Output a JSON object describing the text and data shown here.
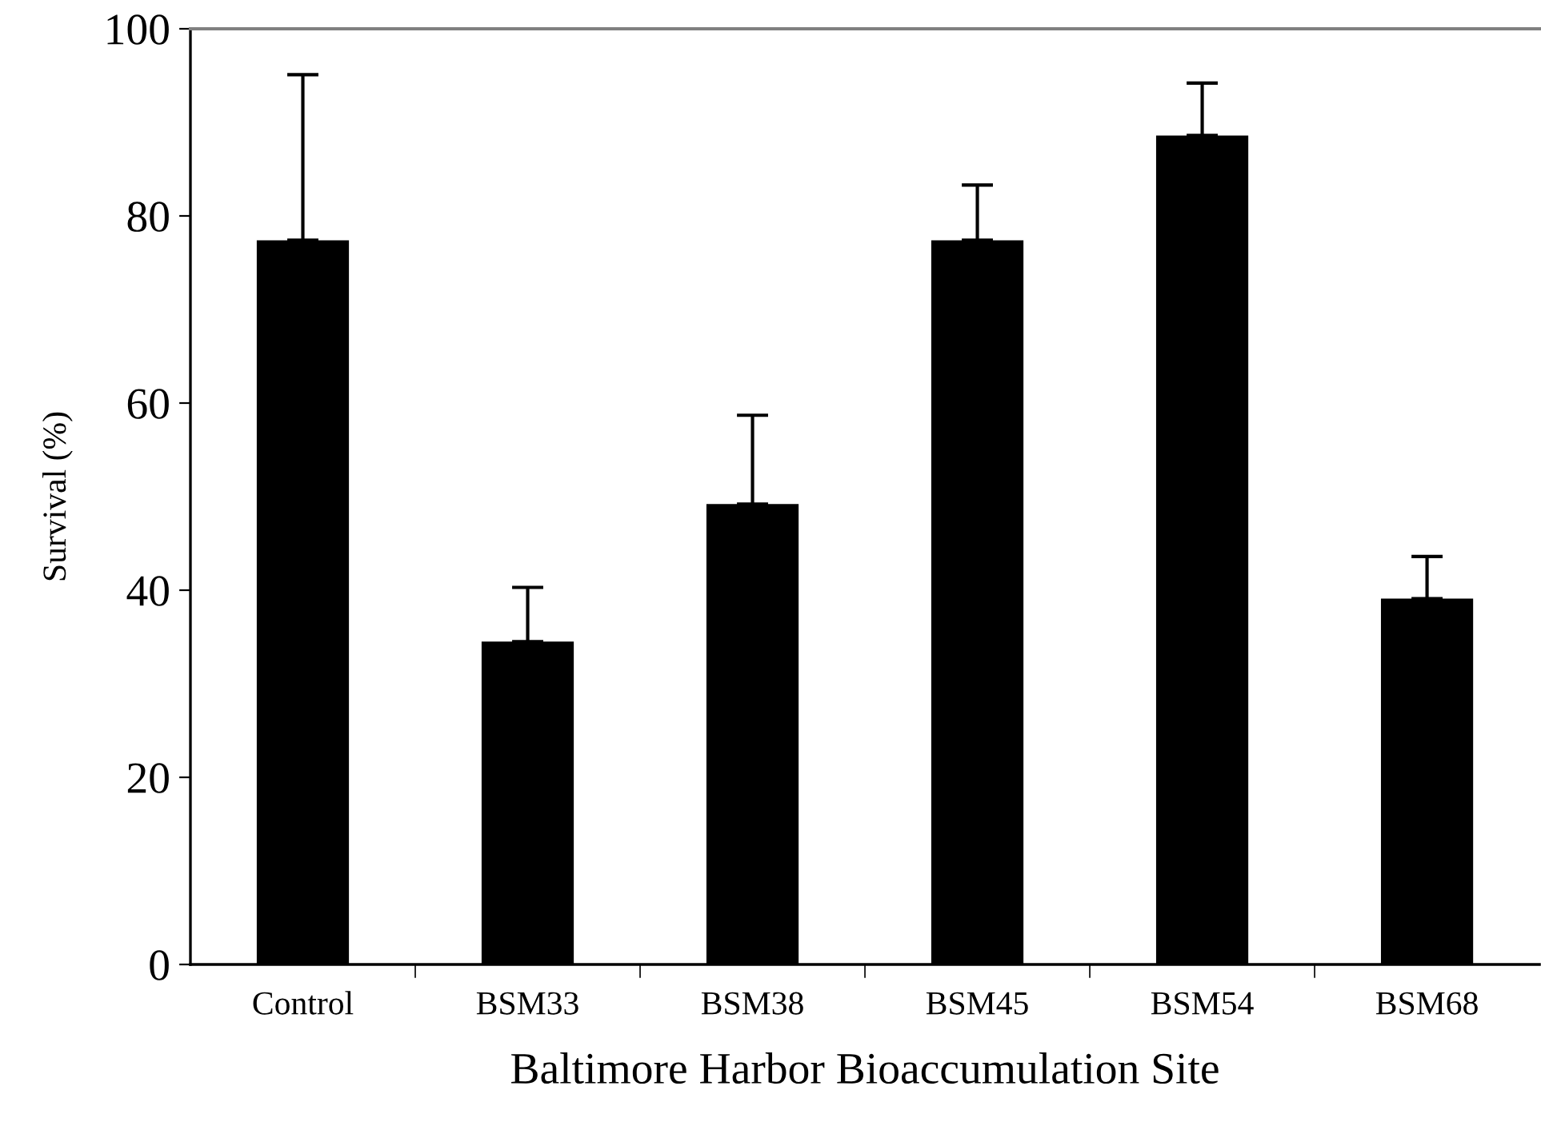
{
  "chart_data": {
    "type": "bar",
    "xlabel": "Baltimore Harbor Bioaccumulation Site",
    "ylabel": "Survival (%)",
    "categories": [
      "Control",
      "BSM33",
      "BSM38",
      "BSM45",
      "BSM54",
      "BSM68"
    ],
    "values": [
      77.4,
      34.5,
      49.2,
      77.4,
      88.6,
      39.1
    ],
    "errors": [
      [
        77.4,
        95.1
      ],
      [
        34.5,
        40.3
      ],
      [
        49.2,
        58.7
      ],
      [
        77.4,
        83.3
      ],
      [
        88.6,
        94.2
      ],
      [
        39.1,
        43.6
      ]
    ],
    "color": "#000000",
    "ylim": [
      0,
      100
    ],
    "yticks": [
      0,
      20,
      40,
      60,
      80,
      100
    ],
    "grid": false,
    "legend": false
  }
}
